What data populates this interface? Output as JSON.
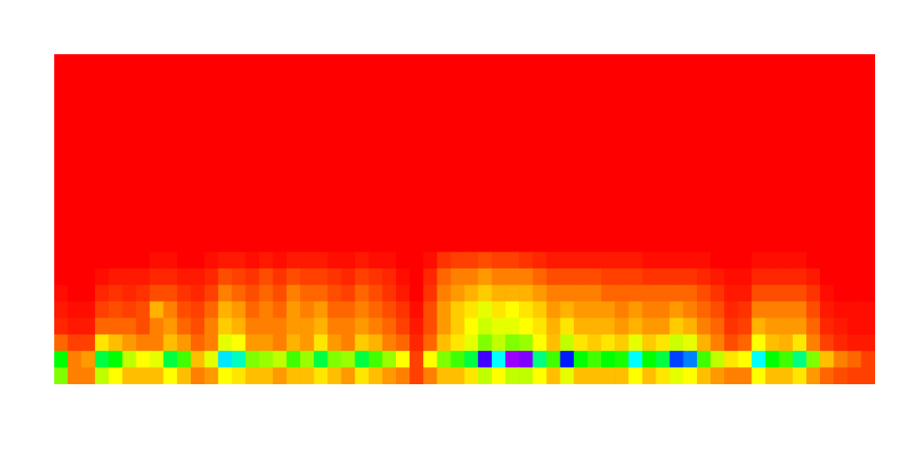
{
  "chart_data": {
    "type": "heatmap",
    "xlim": [
      0,
      60
    ],
    "ylim": [
      0,
      20
    ],
    "color_range": [
      0,
      100
    ],
    "tick_labels": false,
    "grid": false,
    "cells": [
      [
        30,
        10,
        10,
        25,
        20,
        15,
        15,
        15,
        20,
        15,
        10,
        12,
        20,
        18,
        15,
        15,
        12,
        15,
        15,
        18,
        15,
        12,
        18,
        15,
        12,
        10,
        5,
        10,
        15,
        15,
        18,
        25,
        20,
        25,
        25,
        20,
        15,
        22,
        15,
        15,
        15,
        15,
        20,
        15,
        18,
        22,
        20,
        15,
        12,
        10,
        10,
        20,
        15,
        15,
        18,
        12,
        8,
        6,
        5,
        5
      ],
      [
        40,
        10,
        12,
        45,
        40,
        25,
        20,
        22,
        45,
        35,
        15,
        22,
        62,
        55,
        30,
        28,
        25,
        35,
        28,
        45,
        30,
        28,
        45,
        35,
        28,
        20,
        5,
        20,
        30,
        35,
        45,
        85,
        60,
        92,
        90,
        50,
        35,
        78,
        40,
        35,
        40,
        38,
        60,
        40,
        45,
        75,
        70,
        35,
        25,
        18,
        20,
        60,
        40,
        35,
        50,
        30,
        15,
        10,
        8,
        5
      ],
      [
        8,
        5,
        5,
        18,
        15,
        12,
        10,
        10,
        15,
        12,
        8,
        10,
        22,
        20,
        12,
        12,
        10,
        14,
        12,
        18,
        12,
        10,
        16,
        14,
        10,
        8,
        3,
        8,
        15,
        18,
        22,
        30,
        25,
        30,
        28,
        20,
        15,
        25,
        18,
        16,
        18,
        16,
        22,
        16,
        18,
        24,
        22,
        14,
        10,
        6,
        8,
        20,
        15,
        14,
        18,
        10,
        5,
        3,
        2,
        2
      ],
      [
        3,
        2,
        2,
        8,
        8,
        8,
        6,
        10,
        12,
        8,
        6,
        10,
        16,
        14,
        10,
        10,
        10,
        12,
        12,
        14,
        10,
        10,
        12,
        10,
        8,
        5,
        2,
        6,
        12,
        16,
        20,
        24,
        22,
        22,
        20,
        18,
        14,
        18,
        14,
        14,
        14,
        12,
        14,
        12,
        12,
        16,
        14,
        10,
        8,
        4,
        5,
        14,
        12,
        12,
        12,
        8,
        3,
        2,
        1,
        1
      ],
      [
        2,
        1,
        1,
        5,
        6,
        5,
        6,
        14,
        10,
        6,
        5,
        8,
        14,
        12,
        8,
        10,
        8,
        12,
        10,
        12,
        8,
        8,
        10,
        8,
        6,
        4,
        1,
        6,
        12,
        16,
        18,
        22,
        18,
        20,
        18,
        16,
        12,
        14,
        12,
        12,
        12,
        10,
        12,
        10,
        10,
        12,
        10,
        8,
        6,
        3,
        4,
        10,
        10,
        10,
        10,
        6,
        2,
        1,
        1,
        1
      ],
      [
        1,
        0,
        0,
        3,
        4,
        3,
        4,
        6,
        6,
        4,
        3,
        5,
        10,
        8,
        6,
        8,
        6,
        10,
        8,
        8,
        6,
        5,
        8,
        6,
        4,
        2,
        0,
        4,
        10,
        12,
        14,
        16,
        14,
        14,
        14,
        12,
        10,
        10,
        10,
        10,
        8,
        8,
        8,
        8,
        8,
        8,
        8,
        6,
        4,
        2,
        2,
        6,
        6,
        6,
        6,
        4,
        1,
        0,
        0,
        0
      ],
      [
        0,
        0,
        0,
        1,
        2,
        2,
        2,
        3,
        3,
        2,
        2,
        3,
        6,
        5,
        4,
        6,
        4,
        6,
        5,
        5,
        4,
        3,
        5,
        4,
        3,
        1,
        0,
        3,
        8,
        10,
        10,
        12,
        10,
        10,
        10,
        8,
        6,
        6,
        6,
        6,
        5,
        5,
        5,
        4,
        4,
        4,
        4,
        3,
        2,
        1,
        1,
        3,
        3,
        3,
        3,
        2,
        0,
        0,
        0,
        0
      ],
      [
        0,
        0,
        0,
        0,
        0,
        0,
        0,
        1,
        1,
        0,
        0,
        1,
        2,
        2,
        1,
        2,
        1,
        2,
        2,
        2,
        1,
        1,
        2,
        1,
        1,
        0,
        0,
        1,
        4,
        5,
        5,
        6,
        5,
        5,
        4,
        3,
        2,
        2,
        2,
        2,
        2,
        2,
        2,
        1,
        1,
        1,
        1,
        1,
        0,
        0,
        0,
        1,
        1,
        1,
        1,
        0,
        0,
        0,
        0,
        0
      ],
      [
        0,
        0,
        0,
        0,
        0,
        0,
        0,
        0,
        0,
        0,
        0,
        0,
        0,
        0,
        0,
        0,
        0,
        0,
        0,
        0,
        0,
        0,
        0,
        0,
        0,
        0,
        0,
        0,
        0,
        0,
        0,
        0,
        0,
        0,
        0,
        0,
        0,
        0,
        0,
        0,
        0,
        0,
        0,
        0,
        0,
        0,
        0,
        0,
        0,
        0,
        0,
        0,
        0,
        0,
        0,
        0,
        0,
        0,
        0,
        0
      ],
      [
        0,
        0,
        0,
        0,
        0,
        0,
        0,
        0,
        0,
        0,
        0,
        0,
        0,
        0,
        0,
        0,
        0,
        0,
        0,
        0,
        0,
        0,
        0,
        0,
        0,
        0,
        0,
        0,
        0,
        0,
        0,
        0,
        0,
        0,
        0,
        0,
        0,
        0,
        0,
        0,
        0,
        0,
        0,
        0,
        0,
        0,
        0,
        0,
        0,
        0,
        0,
        0,
        0,
        0,
        0,
        0,
        0,
        0,
        0,
        0
      ],
      [
        0,
        0,
        0,
        0,
        0,
        0,
        0,
        0,
        0,
        0,
        0,
        0,
        0,
        0,
        0,
        0,
        0,
        0,
        0,
        0,
        0,
        0,
        0,
        0,
        0,
        0,
        0,
        0,
        0,
        0,
        0,
        0,
        0,
        0,
        0,
        0,
        0,
        0,
        0,
        0,
        0,
        0,
        0,
        0,
        0,
        0,
        0,
        0,
        0,
        0,
        0,
        0,
        0,
        0,
        0,
        0,
        0,
        0,
        0,
        0
      ],
      [
        0,
        0,
        0,
        0,
        0,
        0,
        0,
        0,
        0,
        0,
        0,
        0,
        0,
        0,
        0,
        0,
        0,
        0,
        0,
        0,
        0,
        0,
        0,
        0,
        0,
        0,
        0,
        0,
        0,
        0,
        0,
        0,
        0,
        0,
        0,
        0,
        0,
        0,
        0,
        0,
        0,
        0,
        0,
        0,
        0,
        0,
        0,
        0,
        0,
        0,
        0,
        0,
        0,
        0,
        0,
        0,
        0,
        0,
        0,
        0
      ],
      [
        0,
        0,
        0,
        0,
        0,
        0,
        0,
        0,
        0,
        0,
        0,
        0,
        0,
        0,
        0,
        0,
        0,
        0,
        0,
        0,
        0,
        0,
        0,
        0,
        0,
        0,
        0,
        0,
        0,
        0,
        0,
        0,
        0,
        0,
        0,
        0,
        0,
        0,
        0,
        0,
        0,
        0,
        0,
        0,
        0,
        0,
        0,
        0,
        0,
        0,
        0,
        0,
        0,
        0,
        0,
        0,
        0,
        0,
        0,
        0
      ],
      [
        0,
        0,
        0,
        0,
        0,
        0,
        0,
        0,
        0,
        0,
        0,
        0,
        0,
        0,
        0,
        0,
        0,
        0,
        0,
        0,
        0,
        0,
        0,
        0,
        0,
        0,
        0,
        0,
        0,
        0,
        0,
        0,
        0,
        0,
        0,
        0,
        0,
        0,
        0,
        0,
        0,
        0,
        0,
        0,
        0,
        0,
        0,
        0,
        0,
        0,
        0,
        0,
        0,
        0,
        0,
        0,
        0,
        0,
        0,
        0
      ],
      [
        0,
        0,
        0,
        0,
        0,
        0,
        0,
        0,
        0,
        0,
        0,
        0,
        0,
        0,
        0,
        0,
        0,
        0,
        0,
        0,
        0,
        0,
        0,
        0,
        0,
        0,
        0,
        0,
        0,
        0,
        0,
        0,
        0,
        0,
        0,
        0,
        0,
        0,
        0,
        0,
        0,
        0,
        0,
        0,
        0,
        0,
        0,
        0,
        0,
        0,
        0,
        0,
        0,
        0,
        0,
        0,
        0,
        0,
        0,
        0
      ],
      [
        0,
        0,
        0,
        0,
        0,
        0,
        0,
        0,
        0,
        0,
        0,
        0,
        0,
        0,
        0,
        0,
        0,
        0,
        0,
        0,
        0,
        0,
        0,
        0,
        0,
        0,
        0,
        0,
        0,
        0,
        0,
        0,
        0,
        0,
        0,
        0,
        0,
        0,
        0,
        0,
        0,
        0,
        0,
        0,
        0,
        0,
        0,
        0,
        0,
        0,
        0,
        0,
        0,
        0,
        0,
        0,
        0,
        0,
        0,
        0
      ],
      [
        0,
        0,
        0,
        0,
        0,
        0,
        0,
        0,
        0,
        0,
        0,
        0,
        0,
        0,
        0,
        0,
        0,
        0,
        0,
        0,
        0,
        0,
        0,
        0,
        0,
        0,
        0,
        0,
        0,
        0,
        0,
        0,
        0,
        0,
        0,
        0,
        0,
        0,
        0,
        0,
        0,
        0,
        0,
        0,
        0,
        0,
        0,
        0,
        0,
        0,
        0,
        0,
        0,
        0,
        0,
        0,
        0,
        0,
        0,
        0
      ],
      [
        0,
        0,
        0,
        0,
        0,
        0,
        0,
        0,
        0,
        0,
        0,
        0,
        0,
        0,
        0,
        0,
        0,
        0,
        0,
        0,
        0,
        0,
        0,
        0,
        0,
        0,
        0,
        0,
        0,
        0,
        0,
        0,
        0,
        0,
        0,
        0,
        0,
        0,
        0,
        0,
        0,
        0,
        0,
        0,
        0,
        0,
        0,
        0,
        0,
        0,
        0,
        0,
        0,
        0,
        0,
        0,
        0,
        0,
        0,
        0
      ],
      [
        0,
        0,
        0,
        0,
        0,
        0,
        0,
        0,
        0,
        0,
        0,
        0,
        0,
        0,
        0,
        0,
        0,
        0,
        0,
        0,
        0,
        0,
        0,
        0,
        0,
        0,
        0,
        0,
        0,
        0,
        0,
        0,
        0,
        0,
        0,
        0,
        0,
        0,
        0,
        0,
        0,
        0,
        0,
        0,
        0,
        0,
        0,
        0,
        0,
        0,
        0,
        0,
        0,
        0,
        0,
        0,
        0,
        0,
        0,
        0
      ],
      [
        0,
        0,
        0,
        0,
        0,
        0,
        0,
        0,
        0,
        0,
        0,
        0,
        0,
        0,
        0,
        0,
        0,
        0,
        0,
        0,
        0,
        0,
        0,
        0,
        0,
        0,
        0,
        0,
        0,
        0,
        0,
        0,
        0,
        0,
        0,
        0,
        0,
        0,
        0,
        0,
        0,
        0,
        0,
        0,
        0,
        0,
        0,
        0,
        0,
        0,
        0,
        0,
        0,
        0,
        0,
        0,
        0,
        0,
        0,
        0
      ]
    ]
  }
}
